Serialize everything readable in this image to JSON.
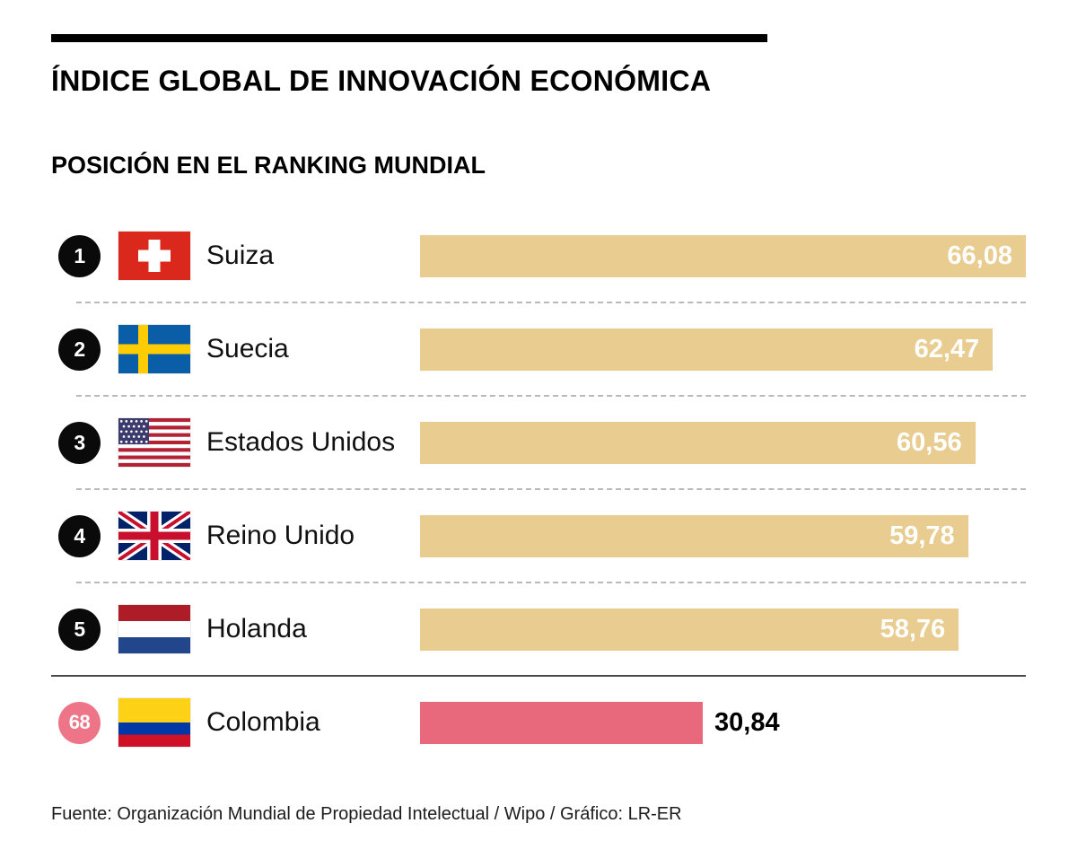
{
  "title": "ÍNDICE GLOBAL DE INNOVACIÓN ECONÓMICA",
  "subtitle": "POSICIÓN EN EL RANKING MUNDIAL",
  "footer": "Fuente: Organización Mundial de Propiedad Intelectual / Wipo / Gráfico: LR-ER",
  "colors": {
    "bar": "#e8cc90",
    "highlight_bar": "#e8697c",
    "rank_badge": "#0a0a0a",
    "highlight_badge": "#ee7487",
    "bar_value_text": "#ffffff",
    "highlight_value_text": "#000000"
  },
  "chart_data": {
    "type": "bar",
    "orientation": "horizontal",
    "title": "ÍNDICE GLOBAL DE INNOVACIÓN ECONÓMICA",
    "subtitle": "POSICIÓN EN EL RANKING MUNDIAL",
    "value_axis_max": 66.08,
    "legend": "none",
    "grid": false,
    "rows": [
      {
        "rank": "1",
        "country": "Suiza",
        "flag": "switzerland",
        "value": 66.08,
        "value_label": "66,08",
        "highlight": false
      },
      {
        "rank": "2",
        "country": "Suecia",
        "flag": "sweden",
        "value": 62.47,
        "value_label": "62,47",
        "highlight": false
      },
      {
        "rank": "3",
        "country": "Estados Unidos",
        "flag": "usa",
        "value": 60.56,
        "value_label": "60,56",
        "highlight": false
      },
      {
        "rank": "4",
        "country": "Reino Unido",
        "flag": "uk",
        "value": 59.78,
        "value_label": "59,78",
        "highlight": false
      },
      {
        "rank": "5",
        "country": "Holanda",
        "flag": "netherlands",
        "value": 58.76,
        "value_label": "58,76",
        "highlight": false
      },
      {
        "rank": "68",
        "country": "Colombia",
        "flag": "colombia",
        "value": 30.84,
        "value_label": "30,84",
        "highlight": true
      }
    ]
  }
}
